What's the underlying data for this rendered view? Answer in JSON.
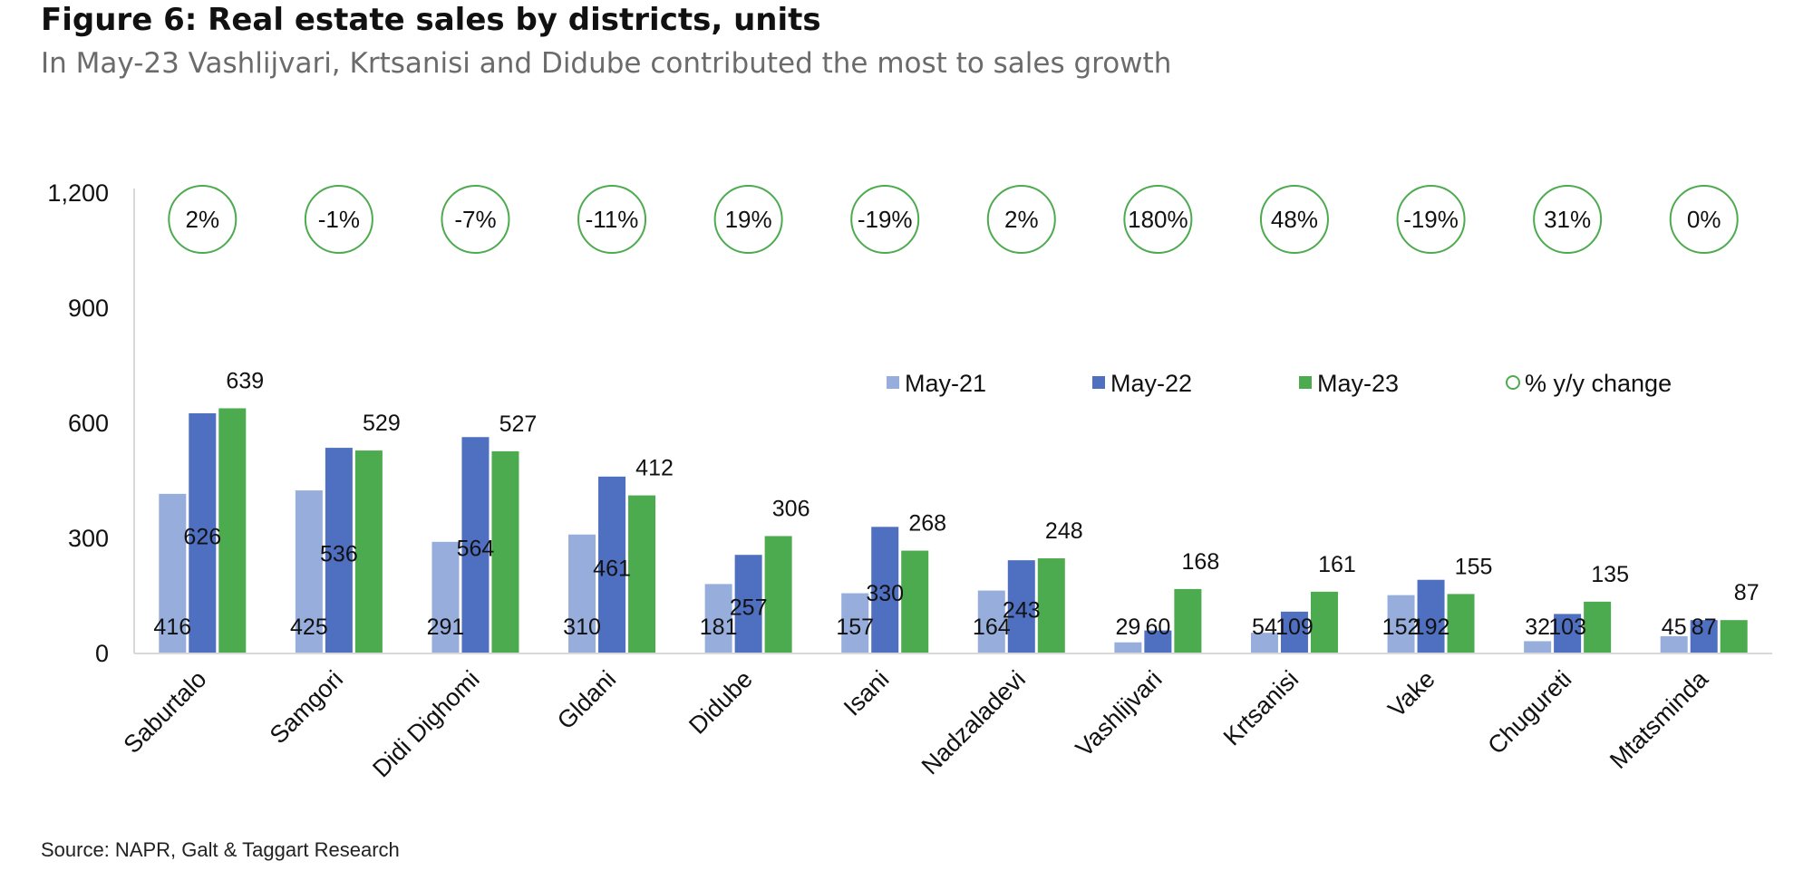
{
  "header": {
    "title": "Figure 6: Real estate sales by districts, units",
    "subtitle": "In May-23 Vashlijvari, Krtsanisi and Didube contributed the most to sales growth"
  },
  "footer": {
    "source": "Source: NAPR, Galt & Taggart Research"
  },
  "colors": {
    "may21": "#97aedc",
    "may22": "#4f6fc1",
    "may23": "#4dab4f",
    "circle": "#4dab4f",
    "axis": "#d9d9d9"
  },
  "chart_data": {
    "type": "bar",
    "ylim": [
      0,
      1200
    ],
    "yticks": [
      0,
      300,
      600,
      900,
      1200
    ],
    "ytick_labels": [
      "0",
      "300",
      "600",
      "900",
      "1,200"
    ],
    "legend_position": "upper-right",
    "grid": false,
    "categories": [
      "Saburtalo",
      "Samgori",
      "Didi Dighomi",
      "Gldani",
      "Didube",
      "Isani",
      "Nadzaladevi",
      "Vashlijvari",
      "Krtsanisi",
      "Vake",
      "Chugureti",
      "Mtatsminda"
    ],
    "series": [
      {
        "name": "May-21",
        "values": [
          416,
          425,
          291,
          310,
          181,
          157,
          164,
          29,
          54,
          152,
          32,
          45
        ]
      },
      {
        "name": "May-22",
        "values": [
          626,
          536,
          564,
          461,
          257,
          330,
          243,
          60,
          109,
          192,
          103,
          87
        ]
      },
      {
        "name": "May-23",
        "values": [
          639,
          529,
          527,
          412,
          306,
          268,
          248,
          168,
          161,
          155,
          135,
          87
        ]
      }
    ],
    "yoy_series_name": "% y/y change",
    "yoy_change": [
      "2%",
      "-1%",
      "-7%",
      "-11%",
      "19%",
      "-19%",
      "2%",
      "180%",
      "48%",
      "-19%",
      "31%",
      "0%"
    ]
  }
}
